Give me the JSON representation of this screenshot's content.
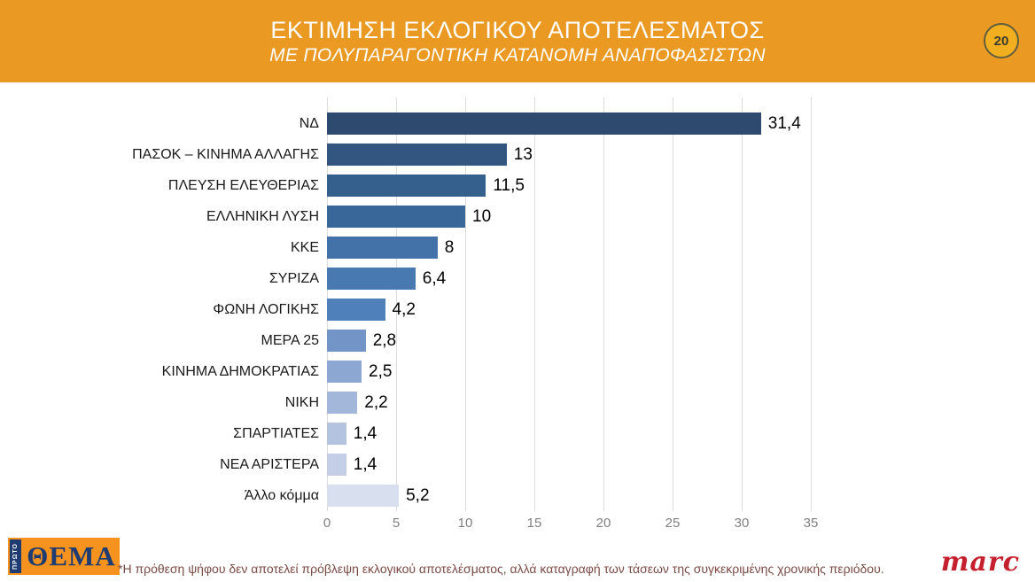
{
  "header": {
    "title": "ΕΚΤΙΜΗΣΗ ΕΚΛΟΓΙΚΟΥ ΑΠΟΤΕΛΕΣΜΑΤΟΣ",
    "subtitle": "ΜΕ ΠΟΛΥΠΑΡΑΓΟΝΤΙΚΗ ΚΑΤΑΝΟΜΗ ΑΝΑΠΟΦΑΣΙΣΤΩΝ",
    "slide_number": "20",
    "banner_color": "#EA9A23",
    "badge_fill": "#F1AE1F",
    "badge_border": "#615E3E"
  },
  "chart_data": {
    "type": "bar",
    "orientation": "horizontal",
    "title": "",
    "xlabel": "",
    "ylabel": "",
    "xlim": [
      0,
      35
    ],
    "x_ticks": [
      0,
      5,
      10,
      15,
      20,
      25,
      30,
      35
    ],
    "grid": true,
    "legend": false,
    "categories": [
      "ΝΔ",
      "ΠΑΣΟΚ – ΚΙΝΗΜΑ ΑΛΛΑΓΗΣ",
      "ΠΛΕΥΣΗ ΕΛΕΥΘΕΡΙΑΣ",
      "ΕΛΛΗΝΙΚΗ ΛΥΣΗ",
      "ΚΚΕ",
      "ΣΥΡΙΖΑ",
      "ΦΩΝΗ ΛΟΓΙΚΗΣ",
      "ΜΕΡΑ 25",
      "ΚΙΝΗΜΑ ΔΗΜΟΚΡΑΤΙΑΣ",
      "ΝΙΚΗ",
      "ΣΠΑΡΤΙΑΤΕΣ",
      "ΝΕΑ ΑΡΙΣΤΕΡΑ",
      "Άλλο κόμμα"
    ],
    "values": [
      31.4,
      13,
      11.5,
      10,
      8,
      6.4,
      4.2,
      2.8,
      2.5,
      2.2,
      1.4,
      1.4,
      5.2
    ],
    "value_labels": [
      "31,4",
      "13",
      "11,5",
      "10",
      "8",
      "6,4",
      "4,2",
      "2,8",
      "2,5",
      "2,2",
      "1,4",
      "1,4",
      "5,2"
    ],
    "bar_colors": [
      "#2E4A6E",
      "#32567F",
      "#35608D",
      "#3A679A",
      "#4272A7",
      "#4879B0",
      "#4F80B9",
      "#7394C7",
      "#8CA7D1",
      "#A3B7DA",
      "#B4C3E0",
      "#C4CFE7",
      "#D8DFEE"
    ],
    "gridline_color": "#DCDCDC"
  },
  "footer": {
    "logo_small_text": "ΠΡΩΤΟ",
    "logo_text": "ΘΕΜΑ",
    "disclaimer": "*Η πρόθεση ψήφου δεν αποτελεί πρόβλεψη εκλογικού αποτελέσματος, αλλά καταγραφή των τάσεων της συγκεκριμένης χρονικής περιόδου.",
    "marc_logo": "marc"
  }
}
